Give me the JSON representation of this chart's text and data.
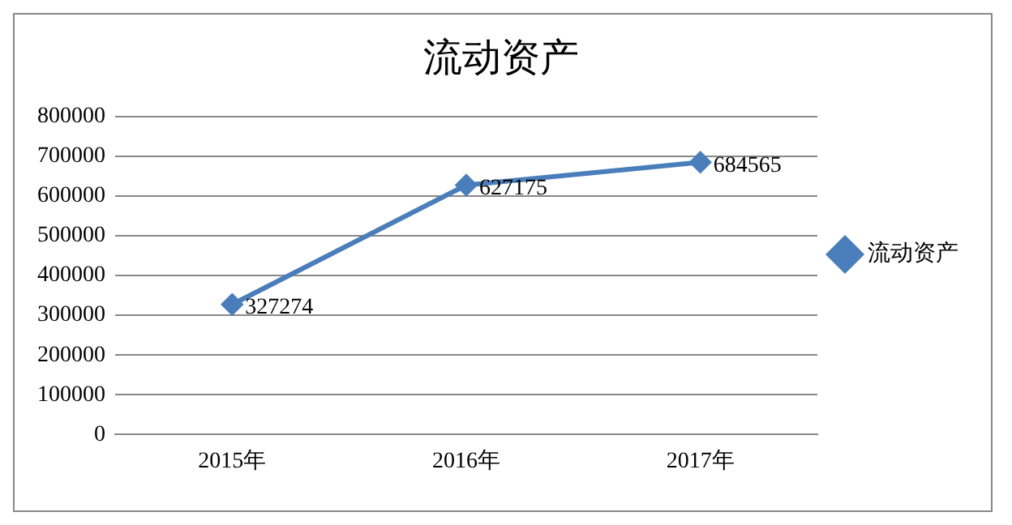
{
  "chart_data": {
    "type": "line",
    "title": "流动资产",
    "categories": [
      "2015年",
      "2016年",
      "2017年"
    ],
    "series": [
      {
        "name": "流动资产",
        "color": "#4a7ebb",
        "values": [
          327274,
          627175,
          684565
        ]
      }
    ],
    "ylim": [
      0,
      800000
    ],
    "yticks": [
      0,
      100000,
      200000,
      300000,
      400000,
      500000,
      600000,
      700000,
      800000
    ],
    "grid": "y",
    "legend": "right",
    "marker": "diamond",
    "line_style": "solid",
    "data_labels": true
  }
}
